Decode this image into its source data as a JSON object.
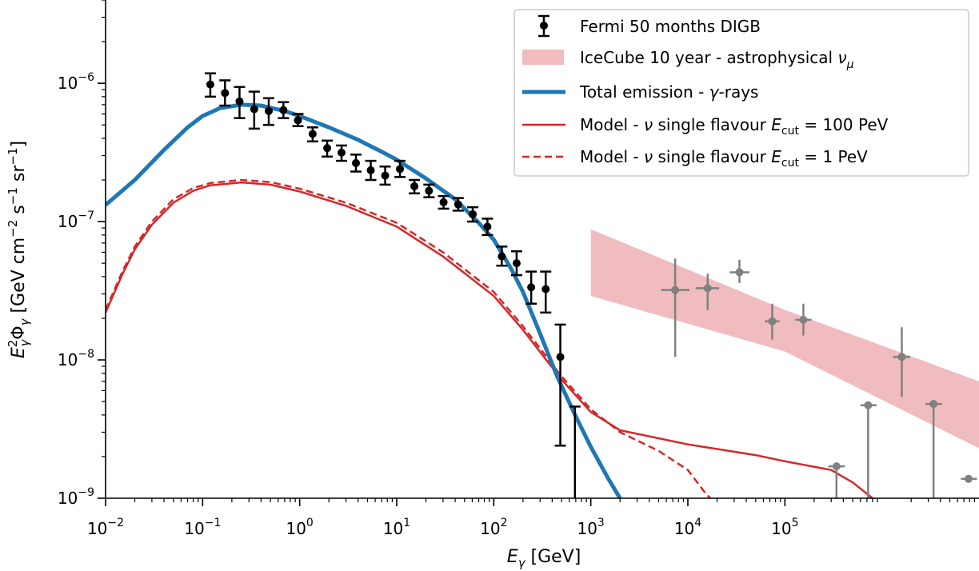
{
  "chart_data": {
    "type": "scatter",
    "scale": {
      "x": "log",
      "y": "log"
    },
    "xlabel": {
      "base": "E",
      "sub": "γ",
      "rest": " [GeV]"
    },
    "ylabel": {
      "base": "E",
      "sup": "2",
      "sub": "γ",
      "mid": "Φ",
      "sub2": "γ",
      "rest": " [GeV cm",
      "sup2": "−2",
      "rest2": " s",
      "sup3": "−1",
      "rest3": " sr",
      "sup4": "−1",
      "end": "]"
    },
    "xlim": [
      0.01,
      10000000
    ],
    "ylim": [
      1e-09,
      4e-06
    ],
    "x_ticks": [
      {
        "value": 0.01,
        "base": "10",
        "exp": "−2"
      },
      {
        "value": 0.1,
        "base": "10",
        "exp": "−1"
      },
      {
        "value": 1,
        "base": "10",
        "exp": "0"
      },
      {
        "value": 10,
        "base": "10",
        "exp": "1"
      },
      {
        "value": 100,
        "base": "10",
        "exp": "2"
      },
      {
        "value": 1000,
        "base": "10",
        "exp": "3"
      },
      {
        "value": 10000,
        "base": "10",
        "exp": "4"
      },
      {
        "value": 100000,
        "base": "10",
        "exp": "5"
      }
    ],
    "y_ticks": [
      {
        "value": 1e-09,
        "base": "10",
        "exp": "−9"
      },
      {
        "value": 1e-08,
        "base": "10",
        "exp": "−8"
      },
      {
        "value": 1e-07,
        "base": "10",
        "exp": "−7"
      },
      {
        "value": 1e-06,
        "base": "10",
        "exp": "−6"
      }
    ],
    "legend": {
      "placement": "top-right",
      "items": [
        {
          "key": "fermi",
          "label": "Fermi 50 months DIGB"
        },
        {
          "key": "icecube",
          "label": "IceCube 10 year - astrophysical ",
          "italic": "ν",
          "sub": "μ"
        },
        {
          "key": "total",
          "label": "Total emission - ",
          "italic": "γ",
          "rest": "-rays"
        },
        {
          "key": "nu100",
          "label": "Model - ",
          "italic": "ν",
          "rest": " single flavour ",
          "math": "E",
          "sub": "cut",
          "tail": " = 100 PeV"
        },
        {
          "key": "nu1",
          "label": "Model - ",
          "italic": "ν",
          "rest": " single flavour ",
          "math": "E",
          "sub": "cut",
          "tail": " = 1 PeV"
        }
      ]
    },
    "colors": {
      "fermi": "#000000",
      "icecube_band": "#f0bcbf",
      "icecube_points": "#808080",
      "total": "#1f77b4",
      "model": "#d62728"
    },
    "series": [
      {
        "name": "Fermi 50 months DIGB",
        "type": "errorbar",
        "points": [
          {
            "x": 0.12,
            "y": 9.8e-07,
            "ylo": 8e-07,
            "yhi": 1.18e-06
          },
          {
            "x": 0.17,
            "y": 8.5e-07,
            "ylo": 6.9e-07,
            "yhi": 1.05e-06
          },
          {
            "x": 0.24,
            "y": 7.4e-07,
            "ylo": 5.6e-07,
            "yhi": 9.4e-07
          },
          {
            "x": 0.34,
            "y": 6.5e-07,
            "ylo": 4.7e-07,
            "yhi": 8.7e-07
          },
          {
            "x": 0.48,
            "y": 6.3e-07,
            "ylo": 5e-07,
            "yhi": 7.8e-07
          },
          {
            "x": 0.68,
            "y": 6.4e-07,
            "ylo": 5.6e-07,
            "yhi": 7.3e-07
          },
          {
            "x": 0.96,
            "y": 5.4e-07,
            "ylo": 4.9e-07,
            "yhi": 6e-07
          },
          {
            "x": 1.36,
            "y": 4.3e-07,
            "ylo": 3.8e-07,
            "yhi": 4.8e-07
          },
          {
            "x": 1.92,
            "y": 3.4e-07,
            "ylo": 2.95e-07,
            "yhi": 3.85e-07
          },
          {
            "x": 2.7,
            "y": 3.15e-07,
            "ylo": 2.75e-07,
            "yhi": 3.55e-07
          },
          {
            "x": 3.8,
            "y": 2.65e-07,
            "ylo": 2.3e-07,
            "yhi": 3.05e-07
          },
          {
            "x": 5.4,
            "y": 2.35e-07,
            "ylo": 2e-07,
            "yhi": 2.75e-07
          },
          {
            "x": 7.6,
            "y": 2.15e-07,
            "ylo": 1.85e-07,
            "yhi": 2.5e-07
          },
          {
            "x": 10.8,
            "y": 2.4e-07,
            "ylo": 2.1e-07,
            "yhi": 2.75e-07
          },
          {
            "x": 15.2,
            "y": 1.8e-07,
            "ylo": 1.6e-07,
            "yhi": 2e-07
          },
          {
            "x": 21.5,
            "y": 1.67e-07,
            "ylo": 1.5e-07,
            "yhi": 1.85e-07
          },
          {
            "x": 30.4,
            "y": 1.38e-07,
            "ylo": 1.24e-07,
            "yhi": 1.53e-07
          },
          {
            "x": 43,
            "y": 1.33e-07,
            "ylo": 1.2e-07,
            "yhi": 1.48e-07
          },
          {
            "x": 60.7,
            "y": 1.13e-07,
            "ylo": 1e-07,
            "yhi": 1.27e-07
          },
          {
            "x": 86,
            "y": 9.2e-08,
            "ylo": 8e-08,
            "yhi": 1.05e-07
          },
          {
            "x": 121,
            "y": 5.6e-08,
            "ylo": 4.8e-08,
            "yhi": 6.6e-08
          },
          {
            "x": 172,
            "y": 5e-08,
            "ylo": 4.1e-08,
            "yhi": 6.1e-08
          },
          {
            "x": 243,
            "y": 3.35e-08,
            "ylo": 2.55e-08,
            "yhi": 4.35e-08
          },
          {
            "x": 343,
            "y": 3.25e-08,
            "ylo": 2.2e-08,
            "yhi": 4.35e-08
          },
          {
            "x": 485,
            "y": 1.05e-08,
            "ylo": 2.4e-09,
            "yhi": 1.8e-08
          },
          {
            "x": 686,
            "y": 1e-09,
            "ylo": 1e-09,
            "yhi": 4.6e-09
          }
        ]
      },
      {
        "name": "IceCube 10 year - astrophysical νμ",
        "type": "band",
        "points": [
          {
            "x": 1000,
            "lo": 2.9e-08,
            "hi": 8.8e-08
          },
          {
            "x": 100000,
            "lo": 1.15e-08,
            "hi": 2.3e-08
          },
          {
            "x": 10000000,
            "lo": 2.3e-09,
            "hi": 7e-09
          }
        ]
      },
      {
        "name": "IceCube data points",
        "type": "errorbar",
        "points": [
          {
            "x": 7400,
            "y": 3.2e-08,
            "ylo": 1.05e-08,
            "yhi": 5.4e-08,
            "xlo": 5300,
            "xhi": 10400
          },
          {
            "x": 16000,
            "y": 3.3e-08,
            "ylo": 2.3e-08,
            "yhi": 4.2e-08,
            "xlo": 12000,
            "xhi": 21000
          },
          {
            "x": 34000,
            "y": 4.3e-08,
            "ylo": 3.6e-08,
            "yhi": 5.3e-08,
            "xlo": 27000,
            "xhi": 43000
          },
          {
            "x": 74000,
            "y": 1.9e-08,
            "ylo": 1.4e-08,
            "yhi": 2.55e-08,
            "xlo": 62000,
            "xhi": 88000
          },
          {
            "x": 155000,
            "y": 1.95e-08,
            "ylo": 1.5e-08,
            "yhi": 2.55e-08,
            "xlo": 128000,
            "xhi": 188000
          },
          {
            "x": 340000,
            "y": 1.7e-09,
            "ylo": 1e-09,
            "yhi": 1.7e-09,
            "xlo": 280000,
            "xhi": 415000
          },
          {
            "x": 720000,
            "y": 4.7e-09,
            "ylo": 1e-09,
            "yhi": 4.7e-09,
            "xlo": 600000,
            "xhi": 880000
          },
          {
            "x": 1600000,
            "y": 1.05e-08,
            "ylo": 5.4e-09,
            "yhi": 1.72e-08,
            "xlo": 1300000,
            "xhi": 1950000
          },
          {
            "x": 3400000,
            "y": 4.8e-09,
            "ylo": 1e-09,
            "yhi": 4.8e-09,
            "xlo": 2800000,
            "xhi": 4150000
          },
          {
            "x": 7800000,
            "y": 1.38e-09,
            "ylo": 1.38e-09,
            "yhi": 1.38e-09,
            "xlo": 6500000,
            "xhi": 9500000
          }
        ]
      },
      {
        "name": "Total emission - γ-rays",
        "type": "line",
        "points": [
          {
            "x": 0.01,
            "y": 1.32e-07
          },
          {
            "x": 0.02,
            "y": 2e-07
          },
          {
            "x": 0.04,
            "y": 3.3e-07
          },
          {
            "x": 0.07,
            "y": 4.8e-07
          },
          {
            "x": 0.1,
            "y": 5.8e-07
          },
          {
            "x": 0.15,
            "y": 6.6e-07
          },
          {
            "x": 0.25,
            "y": 7e-07
          },
          {
            "x": 0.4,
            "y": 6.9e-07
          },
          {
            "x": 0.7,
            "y": 6.3e-07
          },
          {
            "x": 1,
            "y": 5.8e-07
          },
          {
            "x": 2,
            "y": 4.8e-07
          },
          {
            "x": 4,
            "y": 3.9e-07
          },
          {
            "x": 7,
            "y": 3.2e-07
          },
          {
            "x": 10,
            "y": 2.8e-07
          },
          {
            "x": 20,
            "y": 2.05e-07
          },
          {
            "x": 40,
            "y": 1.45e-07
          },
          {
            "x": 70,
            "y": 9.8e-08
          },
          {
            "x": 100,
            "y": 7.4e-08
          },
          {
            "x": 150,
            "y": 4.6e-08
          },
          {
            "x": 200,
            "y": 3.1e-08
          },
          {
            "x": 300,
            "y": 1.55e-08
          },
          {
            "x": 450,
            "y": 7.6e-09
          },
          {
            "x": 700,
            "y": 3.9e-09
          },
          {
            "x": 1000,
            "y": 2.35e-09
          },
          {
            "x": 1500,
            "y": 1.4e-09
          },
          {
            "x": 2000,
            "y": 1e-09
          }
        ]
      },
      {
        "name": "Model - ν single flavour Ecut = 100 PeV",
        "type": "line",
        "points": [
          {
            "x": 0.01,
            "y": 2.2e-08
          },
          {
            "x": 0.015,
            "y": 4.2e-08
          },
          {
            "x": 0.02,
            "y": 6.3e-08
          },
          {
            "x": 0.03,
            "y": 9.5e-08
          },
          {
            "x": 0.05,
            "y": 1.37e-07
          },
          {
            "x": 0.08,
            "y": 1.67e-07
          },
          {
            "x": 0.12,
            "y": 1.83e-07
          },
          {
            "x": 0.25,
            "y": 1.92e-07
          },
          {
            "x": 0.5,
            "y": 1.85e-07
          },
          {
            "x": 1,
            "y": 1.65e-07
          },
          {
            "x": 3,
            "y": 1.3e-07
          },
          {
            "x": 10,
            "y": 9.2e-08
          },
          {
            "x": 30,
            "y": 5.6e-08
          },
          {
            "x": 100,
            "y": 2.9e-08
          },
          {
            "x": 200,
            "y": 1.65e-08
          },
          {
            "x": 500,
            "y": 7.2e-09
          },
          {
            "x": 1000,
            "y": 4.2e-09
          },
          {
            "x": 2000,
            "y": 3.1e-09
          },
          {
            "x": 10000,
            "y": 2.45e-09
          },
          {
            "x": 50000,
            "y": 2.05e-09
          },
          {
            "x": 100000,
            "y": 1.85e-09
          },
          {
            "x": 300000,
            "y": 1.6e-09
          },
          {
            "x": 500000,
            "y": 1.3e-09
          },
          {
            "x": 800000,
            "y": 1e-09
          }
        ]
      },
      {
        "name": "Model - ν single flavour Ecut = 1 PeV",
        "type": "line",
        "dashed": true,
        "points": [
          {
            "x": 0.01,
            "y": 2.3e-08
          },
          {
            "x": 0.015,
            "y": 4.4e-08
          },
          {
            "x": 0.02,
            "y": 6.6e-08
          },
          {
            "x": 0.03,
            "y": 1e-07
          },
          {
            "x": 0.05,
            "y": 1.45e-07
          },
          {
            "x": 0.08,
            "y": 1.75e-07
          },
          {
            "x": 0.12,
            "y": 1.9e-07
          },
          {
            "x": 0.25,
            "y": 2e-07
          },
          {
            "x": 0.5,
            "y": 1.93e-07
          },
          {
            "x": 1,
            "y": 1.73e-07
          },
          {
            "x": 3,
            "y": 1.37e-07
          },
          {
            "x": 10,
            "y": 9.8e-08
          },
          {
            "x": 30,
            "y": 6e-08
          },
          {
            "x": 100,
            "y": 3.1e-08
          },
          {
            "x": 200,
            "y": 1.75e-08
          },
          {
            "x": 500,
            "y": 7.6e-09
          },
          {
            "x": 1000,
            "y": 4.4e-09
          },
          {
            "x": 2000,
            "y": 3e-09
          },
          {
            "x": 5000,
            "y": 2.2e-09
          },
          {
            "x": 10000,
            "y": 1.6e-09
          },
          {
            "x": 15000,
            "y": 1.1e-09
          },
          {
            "x": 17000,
            "y": 1e-09
          }
        ]
      }
    ]
  }
}
